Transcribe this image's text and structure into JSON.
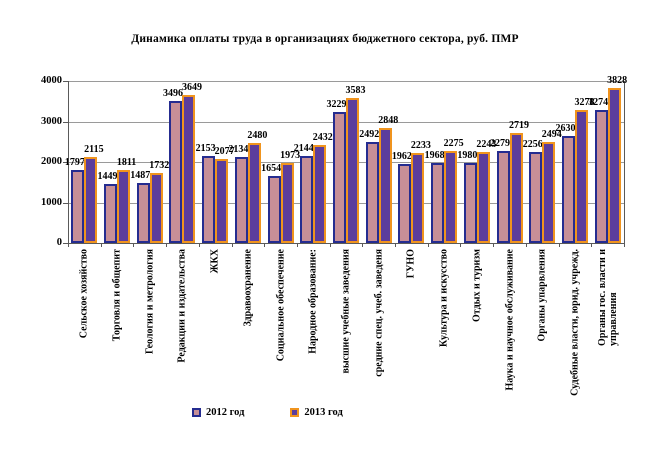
{
  "title": "Динамика оплаты труда в организациях бюджетного сектора, руб. ПМР",
  "chart_data": {
    "type": "bar",
    "title": "Динамика оплаты труда в организациях бюджетного сектора, руб. ПМР",
    "categories": [
      "Сельское хозяйство",
      "Торговля и общепит",
      "Геология и метрология",
      "Редакции и издательства",
      "ЖКХ",
      "Здравоохранение",
      "Социальное обеспечение",
      "Народное образование:",
      "высшие учебные заведения",
      "средние спец. учеб. заведеня",
      "ГУНО",
      "Культура и искусство",
      "Отдых и туризм",
      "Наука и научное обслуживание",
      "Органы упарвления",
      "Судебные власти, юрид. учрежд.",
      "Органы гос. власти и\nуправления"
    ],
    "series": [
      {
        "name": "2012 год",
        "fill": "#C78F97",
        "border": "#252C90",
        "values": [
          1797,
          1449,
          1487,
          3496,
          2153,
          2134,
          1654,
          2144,
          3229,
          2492,
          1962,
          1968,
          1980,
          2279,
          2256,
          2630,
          3274
        ]
      },
      {
        "name": "2013 год",
        "fill": "#5C3D9C",
        "border": "#F0941E",
        "values": [
          2115,
          1811,
          1732,
          3649,
          2077,
          2480,
          1973,
          2432,
          3583,
          2848,
          2233,
          2275,
          2243,
          2719,
          2494,
          3278,
          3828
        ]
      }
    ],
    "xlabel": "",
    "ylabel": "",
    "ylim": [
      0,
      4000
    ],
    "yticks": [
      0,
      1000,
      2000,
      3000,
      4000
    ],
    "grid": true,
    "legend_position": "bottom",
    "colors": {
      "grid": "#9a9a9a",
      "axis": "#5a5a5a",
      "text": "#000000",
      "background": "#ffffff"
    }
  }
}
